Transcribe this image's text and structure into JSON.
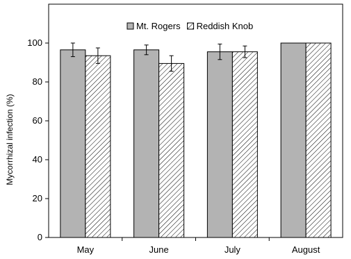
{
  "chart_data": {
    "type": "bar",
    "title": "",
    "xlabel": "",
    "ylabel": "Mycorrhizal infection (%)",
    "ylim": [
      0,
      120
    ],
    "yticks": [
      0,
      20,
      40,
      60,
      80,
      100
    ],
    "grid": false,
    "legend_position": "top-center",
    "categories": [
      "May",
      "June",
      "July",
      "August"
    ],
    "series": [
      {
        "name": "Mt. Rogers",
        "pattern": "solid-gray",
        "color": "#b3b3b3",
        "values": [
          96.5,
          96.5,
          95.5,
          100
        ],
        "errors": [
          3.5,
          2.5,
          4.0,
          0
        ]
      },
      {
        "name": "Reddish Knob",
        "pattern": "diagonal-hatch",
        "color": "#ffffff",
        "values": [
          93.5,
          89.5,
          95.5,
          100
        ],
        "errors": [
          4.0,
          4.0,
          3.0,
          0
        ]
      }
    ]
  }
}
